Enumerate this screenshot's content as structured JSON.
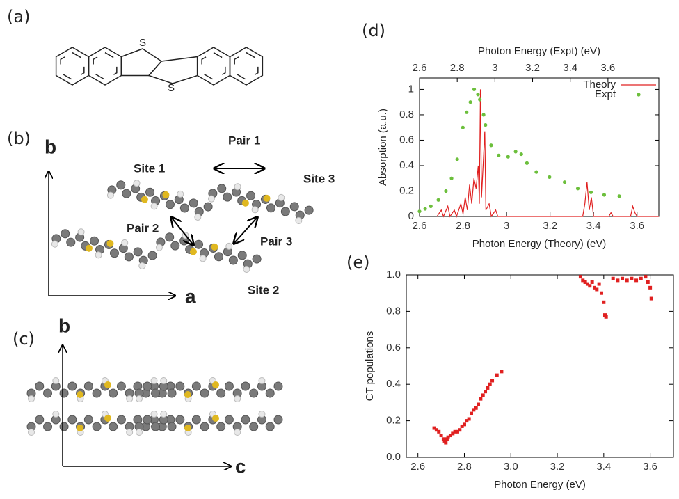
{
  "figure": {
    "panels": [
      "(a)",
      "(b)",
      "(c)",
      "(d)",
      "(e)"
    ],
    "molecule_atoms": [
      "S",
      "S"
    ],
    "axes_b": [
      "b",
      "a"
    ],
    "axes_c": [
      "b",
      "c"
    ],
    "pairs": [
      "Pair 1",
      "Pair 2",
      "Pair 3"
    ],
    "sites": [
      "Site 1",
      "Site 2",
      "Site 3"
    ]
  },
  "chart_data": [
    {
      "type": "line",
      "xlabel": "Photon Energy (Theory) (eV)",
      "x2label": "Photon Energy (Expt) (eV)",
      "ylabel": "Absorption (a.u.)",
      "xlim": [
        2.6,
        3.7
      ],
      "xticks": [
        2.6,
        2.8,
        3,
        3.2,
        3.4,
        3.6
      ],
      "x2lim": [
        2.6,
        3.87
      ],
      "x2ticks": [
        2.6,
        2.8,
        3,
        3.2,
        3.4,
        3.6
      ],
      "ylim": [
        0,
        1.09
      ],
      "yticks": [
        0,
        0.2,
        0.4,
        0.6,
        0.8,
        1
      ],
      "legend": "top-right",
      "series": [
        {
          "name": "Theory",
          "color": "#e02020",
          "style": "line",
          "x": [
            2.68,
            2.7,
            2.71,
            2.73,
            2.74,
            2.76,
            2.77,
            2.79,
            2.8,
            2.81,
            2.82,
            2.83,
            2.84,
            2.85,
            2.86,
            2.87,
            2.875,
            2.88,
            2.885,
            2.9,
            2.905,
            2.92,
            2.93,
            2.95,
            2.96,
            3.0,
            3.35,
            3.36,
            3.37,
            3.38,
            3.39,
            3.4,
            3.47,
            3.48,
            3.49,
            3.57,
            3.58,
            3.59,
            3.6,
            3.7
          ],
          "values": [
            0,
            0.05,
            0,
            0.08,
            0,
            0.05,
            0,
            0.1,
            0.02,
            0.15,
            0.05,
            0.25,
            0.1,
            0.3,
            0.22,
            0.4,
            0.1,
            1.0,
            0.15,
            0.67,
            0.05,
            0.1,
            0,
            0.05,
            0,
            0,
            0,
            0.1,
            0.27,
            0.05,
            0.15,
            0,
            0,
            0.03,
            0,
            0,
            0.08,
            0.03,
            0,
            0
          ]
        },
        {
          "name": "Expt",
          "color": "#6cbf3c",
          "style": "points",
          "axis": "x2",
          "x": [
            2.6,
            2.63,
            2.66,
            2.7,
            2.74,
            2.77,
            2.8,
            2.83,
            2.85,
            2.87,
            2.89,
            2.91,
            2.92,
            2.94,
            2.95,
            2.98,
            3.02,
            3.07,
            3.11,
            3.14,
            3.17,
            3.22,
            3.29,
            3.37,
            3.44,
            3.51,
            3.58,
            3.66
          ],
          "values": [
            0.04,
            0.06,
            0.08,
            0.13,
            0.2,
            0.3,
            0.45,
            0.7,
            0.82,
            0.9,
            1.0,
            0.96,
            0.92,
            0.8,
            0.72,
            0.56,
            0.48,
            0.47,
            0.51,
            0.49,
            0.42,
            0.35,
            0.31,
            0.27,
            0.22,
            0.19,
            0.17,
            0.16
          ]
        }
      ]
    },
    {
      "type": "scatter",
      "xlabel": "Photon Energy (eV)",
      "ylabel": "CT populations",
      "xlim": [
        2.55,
        3.7
      ],
      "xticks": [
        2.6,
        2.8,
        {
          "value": 3,
          "label": "3.0"
        },
        3.2,
        3.4,
        3.6
      ],
      "ylim": [
        0,
        1
      ],
      "yticks": [
        {
          "value": 0,
          "label": "0.0"
        },
        0.2,
        0.4,
        0.6,
        0.8,
        {
          "value": 1,
          "label": "1.0"
        }
      ],
      "color": "#e02020",
      "x": [
        2.67,
        2.68,
        2.69,
        2.7,
        2.71,
        2.715,
        2.72,
        2.725,
        2.73,
        2.74,
        2.75,
        2.76,
        2.77,
        2.78,
        2.79,
        2.8,
        2.81,
        2.82,
        2.83,
        2.84,
        2.85,
        2.86,
        2.87,
        2.88,
        2.89,
        2.9,
        2.91,
        2.92,
        2.94,
        2.96,
        3.3,
        3.31,
        3.32,
        3.33,
        3.34,
        3.35,
        3.36,
        3.37,
        3.38,
        3.39,
        3.4,
        3.405,
        3.41,
        3.44,
        3.46,
        3.48,
        3.5,
        3.52,
        3.54,
        3.56,
        3.58,
        3.59,
        3.6,
        3.605
      ],
      "values": [
        0.16,
        0.15,
        0.14,
        0.12,
        0.1,
        0.09,
        0.08,
        0.1,
        0.11,
        0.12,
        0.13,
        0.14,
        0.14,
        0.15,
        0.17,
        0.18,
        0.2,
        0.21,
        0.24,
        0.26,
        0.27,
        0.29,
        0.32,
        0.34,
        0.36,
        0.38,
        0.4,
        0.42,
        0.45,
        0.47,
        0.99,
        0.97,
        0.96,
        0.95,
        0.94,
        0.96,
        0.93,
        0.92,
        0.95,
        0.9,
        0.85,
        0.78,
        0.77,
        0.98,
        0.97,
        0.98,
        0.97,
        0.98,
        0.97,
        0.98,
        0.99,
        0.96,
        0.93,
        0.87
      ]
    }
  ]
}
